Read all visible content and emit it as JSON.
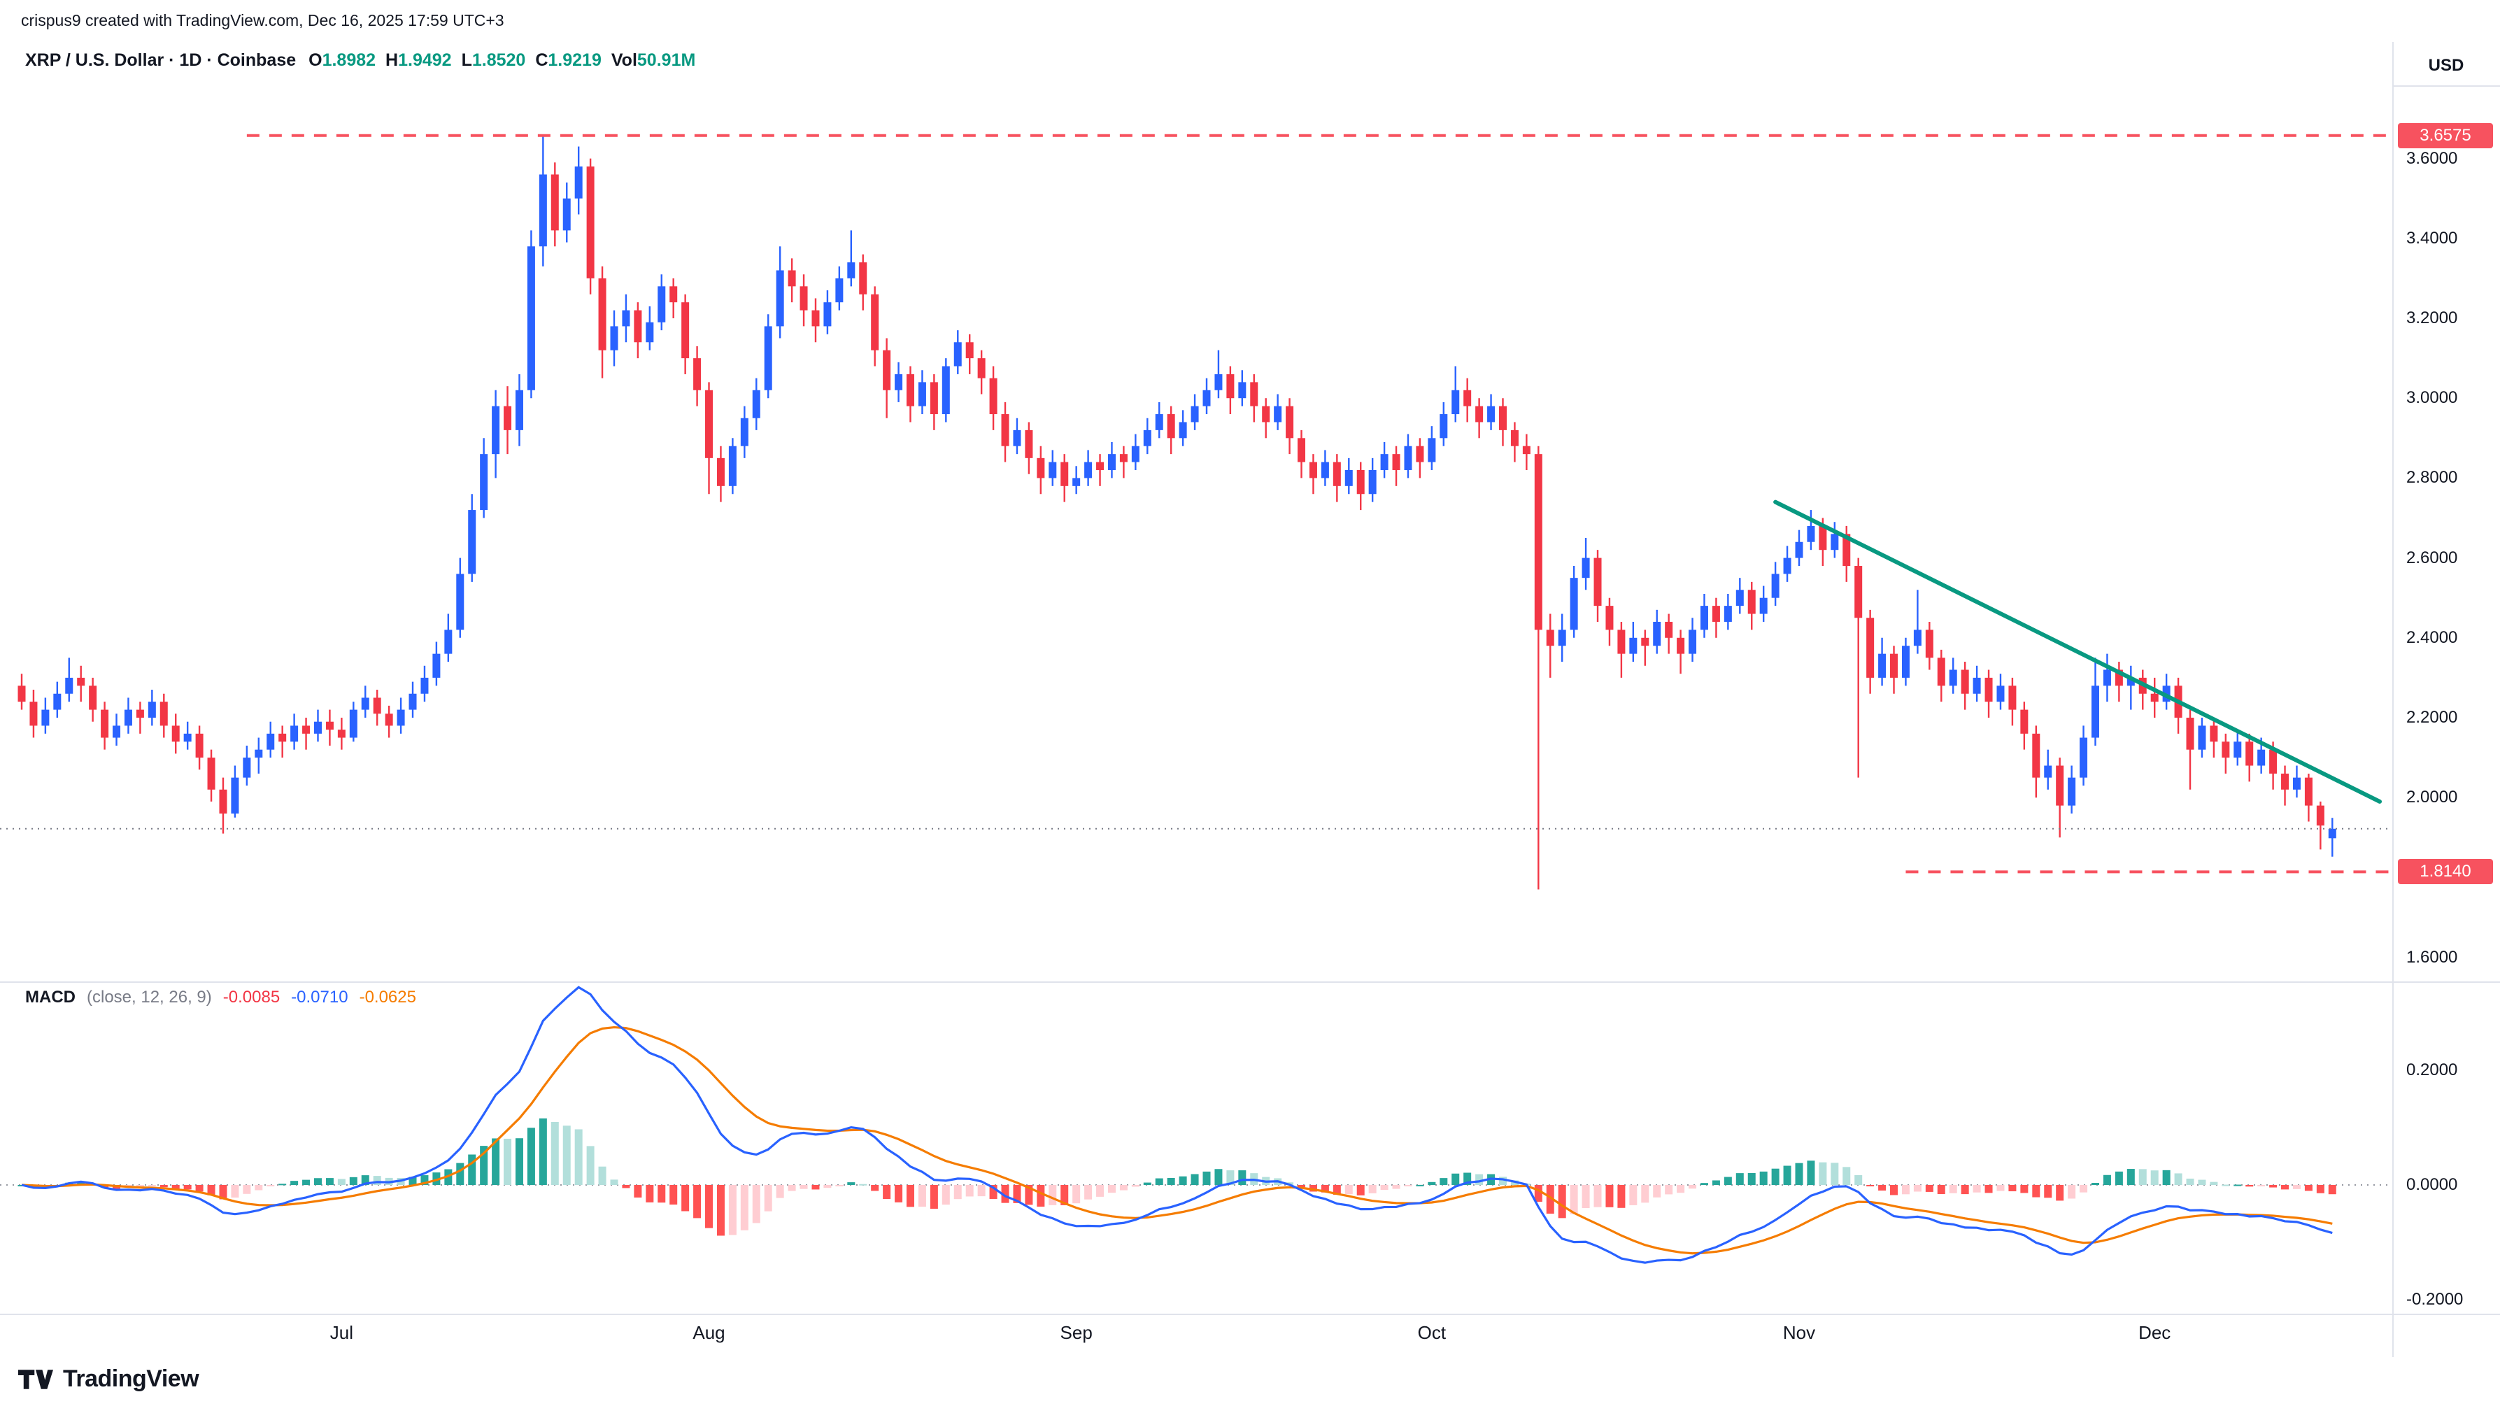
{
  "credit": "crispus9 created with TradingView.com, Dec 16, 2025 17:59 UTC+3",
  "header": {
    "symbol_line": "XRP / U.S. Dollar · 1D · Coinbase",
    "ohlc": {
      "o_label": "O",
      "o": "1.8982",
      "h_label": "H",
      "h": "1.9492",
      "l_label": "L",
      "l": "1.8520",
      "c_label": "C",
      "c": "1.9219",
      "vol_label": "Vol",
      "vol": "50.91M"
    }
  },
  "price_axis": {
    "currency": "USD",
    "ticks": [
      3.6,
      3.4,
      3.2,
      3.0,
      2.8,
      2.6,
      2.4,
      2.2,
      2.0,
      1.6
    ],
    "badges": [
      {
        "value": 3.6575,
        "label": "3.6575"
      },
      {
        "value": 1.814,
        "label": "1.8140"
      }
    ]
  },
  "time_axis": {
    "months": [
      {
        "label": "Jul",
        "index": 27
      },
      {
        "label": "Aug",
        "index": 58
      },
      {
        "label": "Sep",
        "index": 89
      },
      {
        "label": "Oct",
        "index": 119
      },
      {
        "label": "Nov",
        "index": 150
      },
      {
        "label": "Dec",
        "index": 180
      }
    ]
  },
  "macd_legend": {
    "title": "MACD",
    "params": "(close, 12, 26, 9)",
    "hist_value": "-0.0085",
    "macd_value": "-0.0710",
    "signal_value": "-0.0625"
  },
  "logo": {
    "text": "TradingView"
  },
  "chart_data": {
    "type": "candlestick+macd",
    "symbol": "XRP/USD",
    "timeframe": "1D",
    "exchange": "Coinbase",
    "price_ylim": [
      1.54,
      3.89
    ],
    "price_tick_step": 0.2,
    "macd_ticks": [
      0.2,
      0.0,
      -0.2
    ],
    "macd_params": {
      "fast": 12,
      "slow": 26,
      "signal": 9,
      "source": "close"
    },
    "current_price": 1.9219,
    "levels": [
      {
        "price": 3.6575,
        "from_index": 19,
        "style": "dashed",
        "role": "resistance"
      },
      {
        "price": 1.814,
        "from_index": 159,
        "style": "dashed",
        "role": "support"
      }
    ],
    "trendline": {
      "start_index": 148,
      "start_price": 2.74,
      "end_index": 199,
      "end_price": 1.99,
      "role": "descending-resistance"
    },
    "colors": {
      "up": "#2962ff",
      "down": "#f23645",
      "level": "#f7525f",
      "trendline": "#089981",
      "current_price_line": "#787b86",
      "macd_line": "#2962ff",
      "signal_line": "#f57c00",
      "hist_grow_above": "#26a69a",
      "hist_fall_above": "#b2dfdb",
      "hist_fall_below": "#ff5252",
      "hist_grow_below": "#ffcdd2"
    },
    "candles": [
      [
        2.28,
        2.31,
        2.22,
        2.24
      ],
      [
        2.24,
        2.27,
        2.15,
        2.18
      ],
      [
        2.18,
        2.25,
        2.16,
        2.22
      ],
      [
        2.22,
        2.29,
        2.2,
        2.26
      ],
      [
        2.26,
        2.35,
        2.24,
        2.3
      ],
      [
        2.3,
        2.33,
        2.24,
        2.28
      ],
      [
        2.28,
        2.3,
        2.19,
        2.22
      ],
      [
        2.22,
        2.24,
        2.12,
        2.15
      ],
      [
        2.15,
        2.21,
        2.13,
        2.18
      ],
      [
        2.18,
        2.25,
        2.16,
        2.22
      ],
      [
        2.22,
        2.24,
        2.16,
        2.2
      ],
      [
        2.2,
        2.27,
        2.18,
        2.24
      ],
      [
        2.24,
        2.26,
        2.15,
        2.18
      ],
      [
        2.18,
        2.21,
        2.11,
        2.14
      ],
      [
        2.14,
        2.19,
        2.12,
        2.16
      ],
      [
        2.16,
        2.18,
        2.07,
        2.1
      ],
      [
        2.1,
        2.12,
        1.99,
        2.02
      ],
      [
        2.02,
        2.05,
        1.91,
        1.96
      ],
      [
        1.96,
        2.08,
        1.95,
        2.05
      ],
      [
        2.05,
        2.13,
        2.03,
        2.1
      ],
      [
        2.1,
        2.15,
        2.06,
        2.12
      ],
      [
        2.12,
        2.19,
        2.1,
        2.16
      ],
      [
        2.16,
        2.18,
        2.1,
        2.14
      ],
      [
        2.14,
        2.21,
        2.12,
        2.18
      ],
      [
        2.18,
        2.2,
        2.12,
        2.16
      ],
      [
        2.16,
        2.22,
        2.14,
        2.19
      ],
      [
        2.19,
        2.22,
        2.13,
        2.17
      ],
      [
        2.17,
        2.2,
        2.12,
        2.15
      ],
      [
        2.15,
        2.24,
        2.14,
        2.22
      ],
      [
        2.22,
        2.28,
        2.2,
        2.25
      ],
      [
        2.25,
        2.27,
        2.18,
        2.21
      ],
      [
        2.21,
        2.23,
        2.15,
        2.18
      ],
      [
        2.18,
        2.25,
        2.16,
        2.22
      ],
      [
        2.22,
        2.29,
        2.2,
        2.26
      ],
      [
        2.26,
        2.33,
        2.24,
        2.3
      ],
      [
        2.3,
        2.39,
        2.28,
        2.36
      ],
      [
        2.36,
        2.46,
        2.34,
        2.42
      ],
      [
        2.42,
        2.6,
        2.4,
        2.56
      ],
      [
        2.56,
        2.76,
        2.54,
        2.72
      ],
      [
        2.72,
        2.9,
        2.7,
        2.86
      ],
      [
        2.86,
        3.02,
        2.8,
        2.98
      ],
      [
        2.98,
        3.03,
        2.86,
        2.92
      ],
      [
        2.92,
        3.06,
        2.88,
        3.02
      ],
      [
        3.02,
        3.42,
        3.0,
        3.38
      ],
      [
        3.38,
        3.6575,
        3.33,
        3.56
      ],
      [
        3.56,
        3.59,
        3.38,
        3.42
      ],
      [
        3.42,
        3.54,
        3.39,
        3.5
      ],
      [
        3.5,
        3.63,
        3.46,
        3.58
      ],
      [
        3.58,
        3.6,
        3.26,
        3.3
      ],
      [
        3.3,
        3.33,
        3.05,
        3.12
      ],
      [
        3.12,
        3.22,
        3.08,
        3.18
      ],
      [
        3.18,
        3.26,
        3.14,
        3.22
      ],
      [
        3.22,
        3.24,
        3.1,
        3.14
      ],
      [
        3.14,
        3.23,
        3.12,
        3.19
      ],
      [
        3.19,
        3.31,
        3.17,
        3.28
      ],
      [
        3.28,
        3.3,
        3.2,
        3.24
      ],
      [
        3.24,
        3.26,
        3.06,
        3.1
      ],
      [
        3.1,
        3.13,
        2.98,
        3.02
      ],
      [
        3.02,
        3.04,
        2.76,
        2.85
      ],
      [
        2.85,
        2.88,
        2.74,
        2.78
      ],
      [
        2.78,
        2.9,
        2.76,
        2.88
      ],
      [
        2.88,
        2.98,
        2.85,
        2.95
      ],
      [
        2.95,
        3.05,
        2.92,
        3.02
      ],
      [
        3.02,
        3.21,
        3.0,
        3.18
      ],
      [
        3.18,
        3.38,
        3.15,
        3.32
      ],
      [
        3.32,
        3.35,
        3.24,
        3.28
      ],
      [
        3.28,
        3.31,
        3.18,
        3.22
      ],
      [
        3.22,
        3.25,
        3.14,
        3.18
      ],
      [
        3.18,
        3.27,
        3.16,
        3.24
      ],
      [
        3.24,
        3.33,
        3.22,
        3.3
      ],
      [
        3.3,
        3.42,
        3.28,
        3.34
      ],
      [
        3.34,
        3.36,
        3.22,
        3.26
      ],
      [
        3.26,
        3.28,
        3.08,
        3.12
      ],
      [
        3.12,
        3.15,
        2.95,
        3.02
      ],
      [
        3.02,
        3.09,
        2.99,
        3.06
      ],
      [
        3.06,
        3.08,
        2.94,
        2.98
      ],
      [
        2.98,
        3.07,
        2.96,
        3.04
      ],
      [
        3.04,
        3.06,
        2.92,
        2.96
      ],
      [
        2.96,
        3.1,
        2.94,
        3.08
      ],
      [
        3.08,
        3.17,
        3.06,
        3.14
      ],
      [
        3.14,
        3.16,
        3.06,
        3.1
      ],
      [
        3.1,
        3.12,
        3.01,
        3.05
      ],
      [
        3.05,
        3.08,
        2.92,
        2.96
      ],
      [
        2.96,
        2.99,
        2.84,
        2.88
      ],
      [
        2.88,
        2.95,
        2.86,
        2.92
      ],
      [
        2.92,
        2.94,
        2.81,
        2.85
      ],
      [
        2.85,
        2.88,
        2.76,
        2.8
      ],
      [
        2.8,
        2.87,
        2.78,
        2.84
      ],
      [
        2.84,
        2.86,
        2.74,
        2.78
      ],
      [
        2.78,
        2.83,
        2.76,
        2.8
      ],
      [
        2.8,
        2.87,
        2.78,
        2.84
      ],
      [
        2.84,
        2.86,
        2.78,
        2.82
      ],
      [
        2.82,
        2.89,
        2.8,
        2.86
      ],
      [
        2.86,
        2.88,
        2.8,
        2.84
      ],
      [
        2.84,
        2.91,
        2.82,
        2.88
      ],
      [
        2.88,
        2.95,
        2.86,
        2.92
      ],
      [
        2.92,
        2.99,
        2.9,
        2.96
      ],
      [
        2.96,
        2.98,
        2.86,
        2.9
      ],
      [
        2.9,
        2.97,
        2.88,
        2.94
      ],
      [
        2.94,
        3.01,
        2.92,
        2.98
      ],
      [
        2.98,
        3.05,
        2.96,
        3.02
      ],
      [
        3.02,
        3.12,
        3.0,
        3.06
      ],
      [
        3.06,
        3.08,
        2.96,
        3.0
      ],
      [
        3.0,
        3.07,
        2.98,
        3.04
      ],
      [
        3.04,
        3.06,
        2.94,
        2.98
      ],
      [
        2.98,
        3.0,
        2.9,
        2.94
      ],
      [
        2.94,
        3.01,
        2.92,
        2.98
      ],
      [
        2.98,
        3.0,
        2.86,
        2.9
      ],
      [
        2.9,
        2.92,
        2.8,
        2.84
      ],
      [
        2.84,
        2.86,
        2.76,
        2.8
      ],
      [
        2.8,
        2.87,
        2.78,
        2.84
      ],
      [
        2.84,
        2.86,
        2.74,
        2.78
      ],
      [
        2.78,
        2.85,
        2.76,
        2.82
      ],
      [
        2.82,
        2.84,
        2.72,
        2.76
      ],
      [
        2.76,
        2.85,
        2.74,
        2.82
      ],
      [
        2.82,
        2.89,
        2.8,
        2.86
      ],
      [
        2.86,
        2.88,
        2.78,
        2.82
      ],
      [
        2.82,
        2.91,
        2.8,
        2.88
      ],
      [
        2.88,
        2.9,
        2.8,
        2.84
      ],
      [
        2.84,
        2.93,
        2.82,
        2.9
      ],
      [
        2.9,
        2.99,
        2.88,
        2.96
      ],
      [
        2.96,
        3.08,
        2.94,
        3.02
      ],
      [
        3.02,
        3.05,
        2.94,
        2.98
      ],
      [
        2.98,
        3.0,
        2.9,
        2.94
      ],
      [
        2.94,
        3.01,
        2.92,
        2.98
      ],
      [
        2.98,
        3.0,
        2.88,
        2.92
      ],
      [
        2.92,
        2.94,
        2.84,
        2.88
      ],
      [
        2.88,
        2.91,
        2.82,
        2.86
      ],
      [
        2.86,
        2.88,
        1.77,
        2.42
      ],
      [
        2.42,
        2.46,
        2.3,
        2.38
      ],
      [
        2.38,
        2.46,
        2.34,
        2.42
      ],
      [
        2.42,
        2.58,
        2.4,
        2.55
      ],
      [
        2.55,
        2.65,
        2.52,
        2.6
      ],
      [
        2.6,
        2.62,
        2.44,
        2.48
      ],
      [
        2.48,
        2.5,
        2.38,
        2.42
      ],
      [
        2.42,
        2.44,
        2.3,
        2.36
      ],
      [
        2.36,
        2.44,
        2.34,
        2.4
      ],
      [
        2.4,
        2.42,
        2.33,
        2.38
      ],
      [
        2.38,
        2.47,
        2.36,
        2.44
      ],
      [
        2.44,
        2.46,
        2.36,
        2.4
      ],
      [
        2.4,
        2.42,
        2.31,
        2.36
      ],
      [
        2.36,
        2.45,
        2.34,
        2.42
      ],
      [
        2.42,
        2.51,
        2.4,
        2.48
      ],
      [
        2.48,
        2.5,
        2.4,
        2.44
      ],
      [
        2.44,
        2.51,
        2.42,
        2.48
      ],
      [
        2.48,
        2.55,
        2.46,
        2.52
      ],
      [
        2.52,
        2.54,
        2.42,
        2.46
      ],
      [
        2.46,
        2.53,
        2.44,
        2.5
      ],
      [
        2.5,
        2.59,
        2.48,
        2.56
      ],
      [
        2.56,
        2.63,
        2.54,
        2.6
      ],
      [
        2.6,
        2.67,
        2.58,
        2.64
      ],
      [
        2.64,
        2.72,
        2.62,
        2.68
      ],
      [
        2.68,
        2.7,
        2.58,
        2.62
      ],
      [
        2.62,
        2.69,
        2.6,
        2.66
      ],
      [
        2.66,
        2.68,
        2.54,
        2.58
      ],
      [
        2.58,
        2.6,
        2.05,
        2.45
      ],
      [
        2.45,
        2.47,
        2.26,
        2.3
      ],
      [
        2.3,
        2.4,
        2.28,
        2.36
      ],
      [
        2.36,
        2.38,
        2.26,
        2.3
      ],
      [
        2.3,
        2.4,
        2.28,
        2.38
      ],
      [
        2.38,
        2.52,
        2.36,
        2.42
      ],
      [
        2.42,
        2.44,
        2.32,
        2.35
      ],
      [
        2.35,
        2.37,
        2.24,
        2.28
      ],
      [
        2.28,
        2.35,
        2.26,
        2.32
      ],
      [
        2.32,
        2.34,
        2.22,
        2.26
      ],
      [
        2.26,
        2.33,
        2.24,
        2.3
      ],
      [
        2.3,
        2.32,
        2.2,
        2.24
      ],
      [
        2.24,
        2.31,
        2.22,
        2.28
      ],
      [
        2.28,
        2.3,
        2.18,
        2.22
      ],
      [
        2.22,
        2.24,
        2.12,
        2.16
      ],
      [
        2.16,
        2.18,
        2.0,
        2.05
      ],
      [
        2.05,
        2.12,
        2.02,
        2.08
      ],
      [
        2.08,
        2.1,
        1.9,
        1.98
      ],
      [
        1.98,
        2.08,
        1.96,
        2.05
      ],
      [
        2.05,
        2.18,
        2.03,
        2.15
      ],
      [
        2.15,
        2.35,
        2.13,
        2.28
      ],
      [
        2.28,
        2.36,
        2.24,
        2.32
      ],
      [
        2.32,
        2.34,
        2.24,
        2.28
      ],
      [
        2.28,
        2.33,
        2.22,
        2.3
      ],
      [
        2.3,
        2.32,
        2.22,
        2.26
      ],
      [
        2.26,
        2.3,
        2.2,
        2.24
      ],
      [
        2.24,
        2.31,
        2.22,
        2.28
      ],
      [
        2.28,
        2.3,
        2.16,
        2.2
      ],
      [
        2.2,
        2.22,
        2.02,
        2.12
      ],
      [
        2.12,
        2.2,
        2.1,
        2.18
      ],
      [
        2.18,
        2.2,
        2.1,
        2.14
      ],
      [
        2.14,
        2.16,
        2.06,
        2.1
      ],
      [
        2.1,
        2.17,
        2.08,
        2.14
      ],
      [
        2.14,
        2.16,
        2.04,
        2.08
      ],
      [
        2.08,
        2.15,
        2.06,
        2.12
      ],
      [
        2.12,
        2.14,
        2.02,
        2.06
      ],
      [
        2.06,
        2.08,
        1.98,
        2.02
      ],
      [
        2.02,
        2.08,
        2.0,
        2.05
      ],
      [
        2.05,
        2.06,
        1.94,
        1.98
      ],
      [
        1.98,
        1.99,
        1.87,
        1.93
      ],
      [
        1.8982,
        1.9492,
        1.852,
        1.9219
      ]
    ]
  }
}
